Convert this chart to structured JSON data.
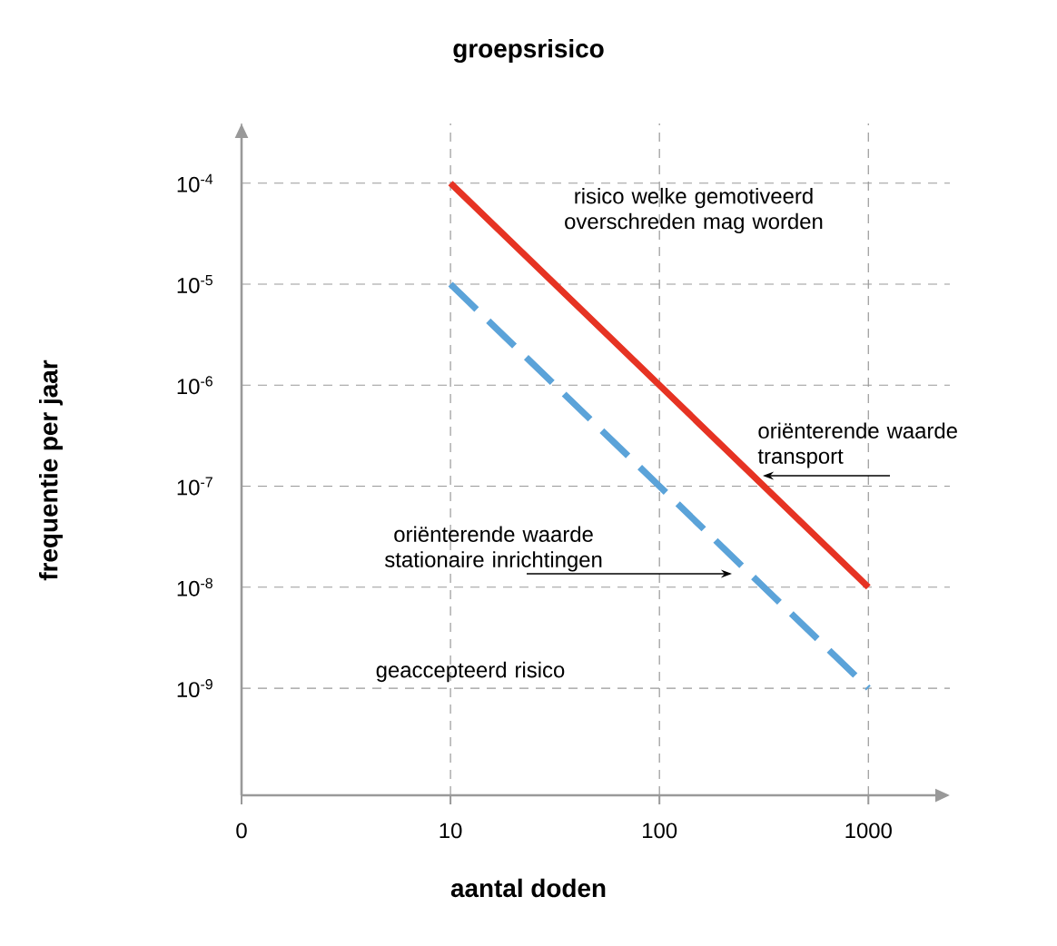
{
  "chart_data": {
    "type": "line",
    "title": "groepsrisico",
    "xlabel": "aantal doden",
    "ylabel": "frequentie per jaar",
    "log": "y",
    "categories": [
      "0",
      "10",
      "100",
      "1000"
    ],
    "series": [
      {
        "color": "#e63323",
        "values": [
          null,
          0.0001,
          1e-06,
          1e-08
        ],
        "line_style": "solid"
      },
      {
        "color": "#5ba3d9",
        "values": [
          null,
          1e-05,
          1e-07,
          1e-09
        ],
        "line_style": "dashed"
      }
    ],
    "ylim": [
      8.7e-11,
      0.00039
    ],
    "yticks": [
      {
        "value": 1e-09,
        "label": "10$^{-9}$"
      },
      {
        "value": 1e-08,
        "label": "10$^{-8}$"
      },
      {
        "value": 1e-07,
        "label": "10$^{-7}$"
      },
      {
        "value": 1e-06,
        "label": "10$^{-6}$"
      },
      {
        "value": 1e-05,
        "label": "10$^{-5}$"
      },
      {
        "value": 0.0001,
        "label": "10$^{-4}$"
      }
    ],
    "grid": true,
    "annotations": [
      "risico welke gemotiveerd overschreden mag worden",
      "oriënterende waarde transport",
      "oriënterende waarde stationaire inrichtingen",
      "geaccepteerd risico"
    ]
  }
}
